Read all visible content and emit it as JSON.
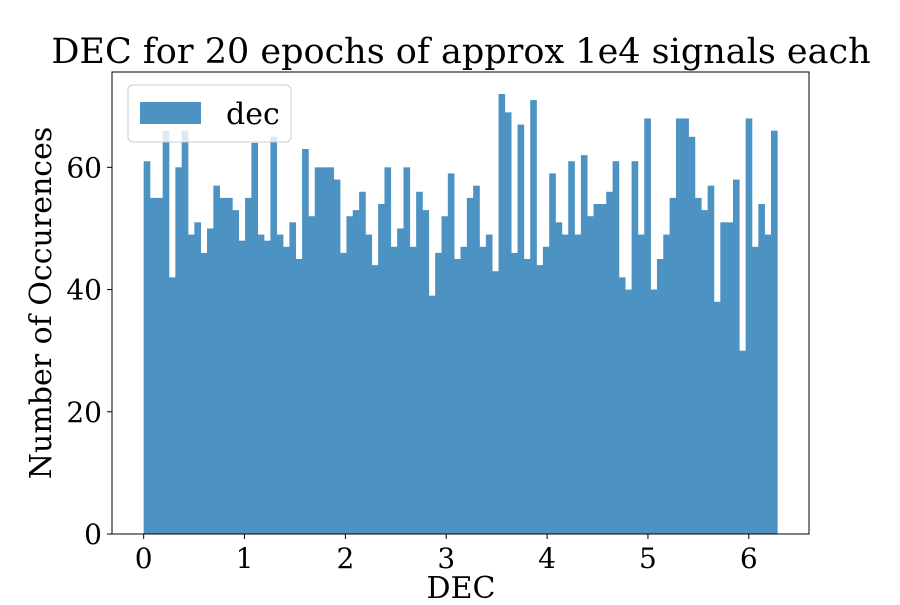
{
  "chart_data": {
    "type": "bar",
    "title": "DEC for 20 epochs of approx 1e4 signals each",
    "xlabel": "DEC",
    "ylabel": "Number of Occurences",
    "xlim": [
      -0.314,
      6.597
    ],
    "ylim": [
      0,
      75.6
    ],
    "xticks": [
      0,
      1,
      2,
      3,
      4,
      5,
      6
    ],
    "yticks": [
      0,
      20,
      40,
      60
    ],
    "bin_range": [
      0,
      6.283
    ],
    "bin_count": 100,
    "grid": false,
    "legend": {
      "position": "top-left",
      "entries": [
        "dec"
      ]
    },
    "series": [
      {
        "name": "dec",
        "color": "#4c92c3",
        "values": [
          61,
          55,
          55,
          66,
          42,
          60,
          66,
          49,
          51,
          46,
          50,
          57,
          55,
          55,
          53,
          48,
          55,
          64,
          49,
          48,
          65,
          49,
          47,
          51,
          45,
          63,
          52,
          60,
          60,
          60,
          58,
          46,
          52,
          53,
          56,
          49,
          44,
          54,
          60,
          47,
          50,
          60,
          47,
          56,
          53,
          39,
          46,
          52,
          59,
          45,
          47,
          55,
          57,
          47,
          49,
          43,
          72,
          69,
          46,
          67,
          45,
          71,
          44,
          47,
          59,
          51,
          49,
          61,
          49,
          62,
          52,
          54,
          54,
          56,
          61,
          42,
          40,
          61,
          49,
          68,
          40,
          45,
          49,
          55,
          68,
          68,
          65,
          55,
          53,
          57,
          38,
          51,
          51,
          58,
          30,
          68,
          47,
          54,
          49,
          66
        ]
      }
    ]
  }
}
